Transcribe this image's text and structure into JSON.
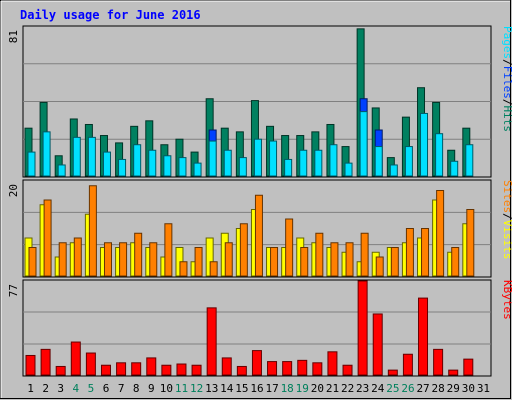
{
  "chart_data": {
    "type": "bar",
    "title": "Daily usage for June 2016",
    "categories": [
      "1",
      "2",
      "3",
      "4",
      "5",
      "6",
      "7",
      "8",
      "9",
      "10",
      "11",
      "12",
      "13",
      "14",
      "15",
      "16",
      "17",
      "18",
      "19",
      "20",
      "21",
      "22",
      "23",
      "24",
      "25",
      "26",
      "27",
      "28",
      "29",
      "30",
      "31"
    ],
    "weekend_days": [
      "4",
      "5",
      "11",
      "12",
      "18",
      "19",
      "25",
      "26"
    ],
    "panels": [
      {
        "id": "top",
        "ymax_label": "81",
        "ymax": 81,
        "series": [
          {
            "name": "Hits",
            "color": "#008060",
            "values": [
              26,
              40,
              11,
              31,
              28,
              22,
              18,
              27,
              30,
              17,
              20,
              13,
              42,
              26,
              24,
              41,
              27,
              22,
              22,
              24,
              28,
              16,
              80,
              37,
              10,
              32,
              48,
              40,
              14,
              26,
              0
            ]
          },
          {
            "name": "Files",
            "color": "#0040ff",
            "values": [
              0,
              0,
              0,
              0,
              0,
              0,
              0,
              0,
              0,
              0,
              0,
              0,
              25,
              0,
              0,
              0,
              0,
              0,
              0,
              0,
              0,
              0,
              42,
              25,
              0,
              0,
              0,
              0,
              0,
              0,
              0
            ]
          },
          {
            "name": "Pages",
            "color": "#00e0ff",
            "values": [
              13,
              24,
              6,
              21,
              21,
              13,
              9,
              17,
              14,
              11,
              10,
              7,
              19,
              14,
              10,
              20,
              19,
              9,
              14,
              14,
              17,
              7,
              35,
              16,
              6,
              16,
              34,
              23,
              8,
              17,
              0
            ]
          }
        ],
        "legend": [
          "Pages",
          "/",
          "Files",
          "/",
          "Hits"
        ],
        "legend_colors": [
          "#00e0ff",
          "#000000",
          "#0040ff",
          "#000000",
          "#008060"
        ]
      },
      {
        "id": "mid",
        "ymax_label": "20",
        "ymax": 20,
        "series": [
          {
            "name": "Visits",
            "color": "#ffff00",
            "values": [
              8,
              15,
              4,
              7,
              13,
              6,
              6,
              7,
              6,
              4,
              6,
              3,
              8,
              9,
              10,
              14,
              6,
              6,
              8,
              7,
              6,
              5,
              3,
              5,
              6,
              7,
              8,
              16,
              5,
              11,
              0
            ]
          },
          {
            "name": "Sites",
            "color": "#ff8000",
            "values": [
              6,
              16,
              7,
              8,
              19,
              7,
              7,
              9,
              7,
              11,
              3,
              6,
              3,
              7,
              11,
              17,
              6,
              12,
              6,
              9,
              7,
              7,
              9,
              4,
              6,
              10,
              10,
              18,
              6,
              14,
              0
            ]
          }
        ],
        "legend": [
          "Sites",
          "/",
          "Visits"
        ],
        "legend_colors": [
          "#ff8000",
          "#000000",
          "#ffff00"
        ]
      },
      {
        "id": "bot",
        "ymax_label": "77",
        "ymax": 77,
        "series": [
          {
            "name": "KBytes",
            "color": "#ff0000",
            "values": [
              16,
              21,
              7,
              27,
              18,
              8,
              10,
              10,
              14,
              8,
              9,
              8,
              55,
              14,
              7,
              20,
              11,
              11,
              12,
              10,
              19,
              8,
              77,
              50,
              4,
              17,
              63,
              21,
              4,
              13,
              0
            ]
          }
        ],
        "legend": [
          "KBytes"
        ],
        "legend_colors": [
          "#ff0000"
        ]
      }
    ],
    "colors": {
      "title": "#0000ff",
      "weekday_label": "#000000",
      "weekend_label": "#00805c",
      "plot_bg": "#c0c0c0",
      "grid": "#808080"
    }
  }
}
